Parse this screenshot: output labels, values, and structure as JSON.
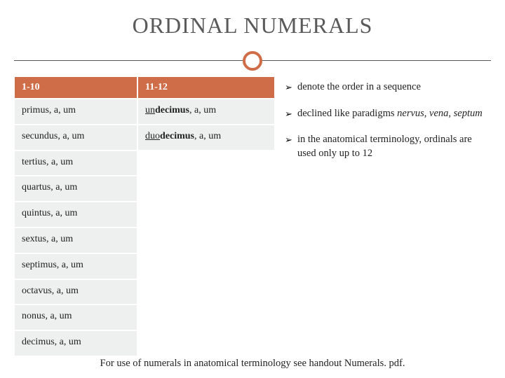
{
  "title": "ORDINAL NUMERALS",
  "colors": {
    "accent": "#cf6d48",
    "rule": "#555555",
    "cell_bg": "#eef0f0",
    "text": "#222222",
    "title_text": "#5a5a5a"
  },
  "table": {
    "col1": {
      "header": "1-10",
      "rows": [
        "primus, a, um",
        "secundus, a, um",
        "tertius, a, um",
        "quartus, a, um",
        "quintus, a, um",
        "sextus, a, um",
        "septimus, a, um",
        "octavus, a, um",
        "nonus, a, um",
        "decimus, a, um"
      ]
    },
    "col2": {
      "header": "11-12",
      "rows": [
        {
          "prefix": "un",
          "bold": "decimus",
          "suffix": ", a, um"
        },
        {
          "prefix": "duo",
          "bold": "decimus",
          "suffix": ", a, um"
        }
      ]
    }
  },
  "notes": [
    {
      "text": "denote the order in a sequence"
    },
    {
      "text_pre": "declined like paradigms ",
      "italic": "nervus, vena, septum"
    },
    {
      "text": "in the anatomical terminology, ordinals are used only up to 12"
    }
  ],
  "footer": "For use of numerals in anatomical terminology see handout Numerals. pdf."
}
